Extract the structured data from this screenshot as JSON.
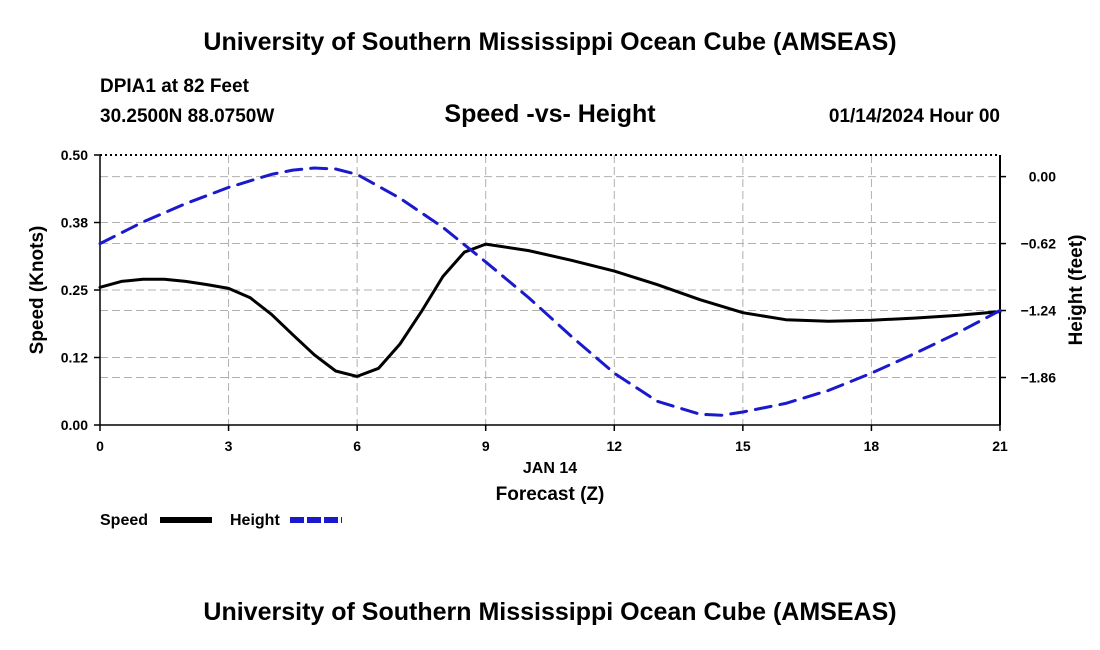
{
  "header": {
    "title": "University of Southern Mississippi Ocean Cube (AMSEAS)",
    "station": "DPIA1 at 82 Feet",
    "coords": "30.2500N  88.0750W",
    "subtitle": "Speed -vs- Height",
    "datetime": "01/14/2024 Hour 00"
  },
  "footer": {
    "title": "University of Southern Mississippi Ocean Cube (AMSEAS)"
  },
  "colors": {
    "speed": "#000000",
    "height": "#1a1acc",
    "grid": "#b0b0b0"
  },
  "chart_data": {
    "type": "line",
    "title": "Speed -vs- Height",
    "xlabel": "Forecast (Z)",
    "xdate": "JAN 14",
    "ylabel": "Speed (Knots)",
    "y2label": "Height (feet)",
    "xlim": [
      0,
      21
    ],
    "ylim": [
      0,
      0.5
    ],
    "y2lim": [
      -2.3,
      0.2
    ],
    "xticks": [
      0,
      3,
      6,
      9,
      12,
      15,
      18,
      21
    ],
    "xtick_labels": [
      "0",
      "3",
      "6",
      "9",
      "12",
      "15",
      "18",
      "21"
    ],
    "yticks": [
      0.0,
      0.125,
      0.25,
      0.375,
      0.5
    ],
    "ytick_labels": [
      "0.00",
      "0.12",
      "0.25",
      "0.38",
      "0.50"
    ],
    "y2ticks": [
      0.0,
      -0.62,
      -1.24,
      -1.86
    ],
    "y2tick_labels": [
      "0.00",
      "−0.62",
      "−1.24",
      "−1.86"
    ],
    "grid": true,
    "legend_position": "bottom-left",
    "series": [
      {
        "name": "Speed",
        "axis": "left",
        "style": "solid",
        "x": [
          0,
          0.5,
          1,
          1.5,
          2,
          2.5,
          3,
          3.5,
          4,
          4.5,
          5,
          5.5,
          6,
          6.5,
          7,
          7.5,
          8,
          8.5,
          9,
          10,
          11,
          12,
          13,
          14,
          15,
          16,
          17,
          18,
          19,
          20,
          21
        ],
        "values": [
          0.255,
          0.266,
          0.27,
          0.27,
          0.266,
          0.26,
          0.253,
          0.236,
          0.205,
          0.167,
          0.13,
          0.1,
          0.09,
          0.105,
          0.15,
          0.21,
          0.275,
          0.32,
          0.335,
          0.323,
          0.305,
          0.285,
          0.26,
          0.232,
          0.208,
          0.195,
          0.192,
          0.194,
          0.198,
          0.203,
          0.21
        ]
      },
      {
        "name": "Height",
        "axis": "right",
        "style": "dashed",
        "x": [
          0,
          1,
          2,
          3,
          4,
          4.5,
          5,
          5.5,
          6,
          7,
          8,
          9,
          10,
          11,
          12,
          13,
          14,
          14.5,
          15,
          16,
          17,
          18,
          19,
          20,
          21
        ],
        "values": [
          -0.62,
          -0.42,
          -0.25,
          -0.1,
          0.02,
          0.06,
          0.08,
          0.07,
          0.02,
          -0.2,
          -0.47,
          -0.79,
          -1.12,
          -1.48,
          -1.82,
          -2.08,
          -2.2,
          -2.21,
          -2.18,
          -2.1,
          -1.98,
          -1.82,
          -1.64,
          -1.45,
          -1.24
        ]
      }
    ]
  }
}
